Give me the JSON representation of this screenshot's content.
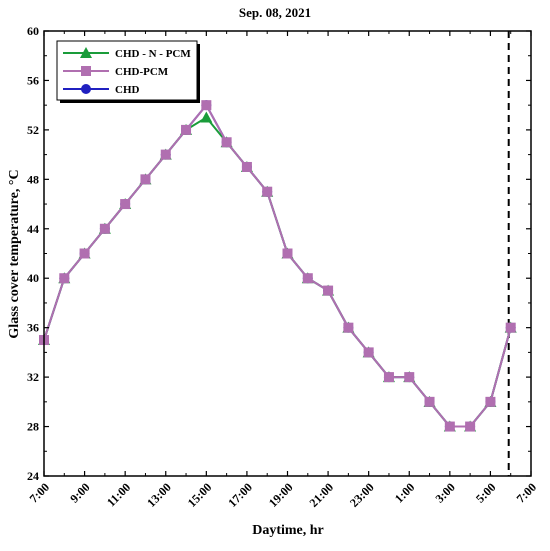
{
  "chart_data": {
    "type": "line",
    "title": "Sep. 08, 2021",
    "xlabel": "Daytime, hr",
    "ylabel": "Glass cover temperature, °C",
    "ylim": [
      24,
      60
    ],
    "yticks": [
      24,
      28,
      32,
      36,
      40,
      44,
      48,
      52,
      56,
      60
    ],
    "x_tick_labels": [
      "7:00",
      "9:00",
      "11:00",
      "13:00",
      "15:00",
      "17:00",
      "19:00",
      "21:00",
      "23:00",
      "1:00",
      "3:00",
      "5:00",
      "7:00"
    ],
    "x": [
      "7:00",
      "8:00",
      "9:00",
      "10:00",
      "11:00",
      "12:00",
      "13:00",
      "14:00",
      "15:00",
      "16:00",
      "17:00",
      "18:00",
      "19:00",
      "20:00",
      "21:00",
      "22:00",
      "23:00",
      "0:00",
      "1:00",
      "2:00",
      "3:00",
      "4:00",
      "5:00",
      "6:00"
    ],
    "vline_x": "6:00",
    "legend_position": "top-left",
    "grid": false,
    "series": [
      {
        "name": "CHD - N - PCM",
        "color": "#1a9c3a",
        "marker": "triangle",
        "values": [
          35,
          40,
          42,
          44,
          46,
          48,
          50,
          52,
          53,
          51,
          49,
          47,
          42,
          40,
          39,
          36,
          34,
          32,
          32,
          30,
          28,
          28,
          30,
          36
        ]
      },
      {
        "name": "CHD-PCM",
        "color": "#b06fb0",
        "marker": "square",
        "values": [
          35,
          40,
          42,
          44,
          46,
          48,
          50,
          52,
          54,
          51,
          49,
          47,
          42,
          40,
          39,
          36,
          34,
          32,
          32,
          30,
          28,
          28,
          30,
          36
        ]
      },
      {
        "name": "CHD",
        "color": "#2020c0",
        "marker": "circle",
        "values": [
          35,
          40,
          42,
          44,
          46,
          48,
          50,
          52,
          54,
          51,
          49,
          47,
          42,
          40,
          39,
          36,
          34,
          32,
          32,
          30,
          28,
          28,
          30,
          36
        ]
      }
    ]
  }
}
